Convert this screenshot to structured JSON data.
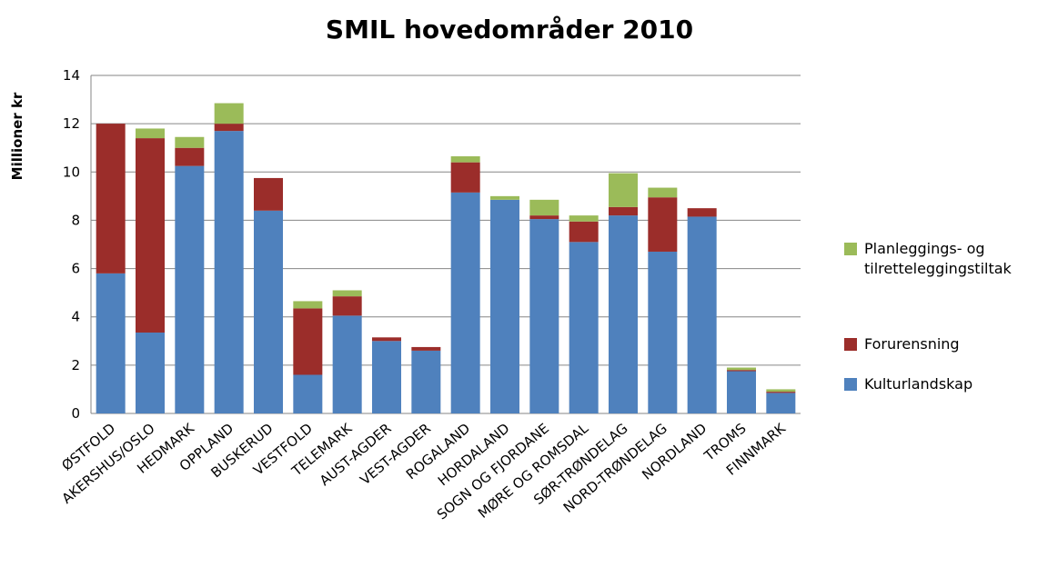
{
  "chart_data": {
    "type": "stacked_bar",
    "title": "SMIL hovedområder 2010",
    "y_label": "Millioner kr",
    "categories": [
      "ØSTFOLD",
      "AKERSHUS/OSLO",
      "HEDMARK",
      "OPPLAND",
      "BUSKERUD",
      "VESTFOLD",
      "TELEMARK",
      "AUST-AGDER",
      "VEST-AGDER",
      "ROGALAND",
      "HORDALAND",
      "SOGN OG FJORDANE",
      "MØRE OG ROMSDAL",
      "SØR-TRØNDELAG",
      "NORD-TRØNDELAG",
      "NORDLAND",
      "TROMS",
      "FINNMARK"
    ],
    "series": [
      {
        "name": "Kulturlandskap",
        "color": "#4f81bd",
        "values": [
          5.8,
          3.35,
          10.25,
          11.7,
          8.4,
          1.6,
          4.05,
          3.0,
          2.6,
          9.15,
          8.85,
          8.05,
          7.1,
          8.2,
          6.7,
          8.15,
          1.75,
          0.85
        ]
      },
      {
        "name": "Forurensning",
        "color": "#9b2d2a",
        "values": [
          6.2,
          8.05,
          0.75,
          0.3,
          1.35,
          2.75,
          0.8,
          0.15,
          0.15,
          1.25,
          0,
          0.15,
          0.85,
          0.35,
          2.25,
          0.35,
          0.05,
          0.05
        ]
      },
      {
        "name": "Planleggings- og tilretteleggingstiltak",
        "color": "#9bbb59",
        "values": [
          0,
          0.4,
          0.45,
          0.85,
          0,
          0.3,
          0.25,
          0,
          0,
          0.25,
          0.15,
          0.65,
          0.25,
          1.4,
          0.4,
          0,
          0.1,
          0.1
        ]
      }
    ],
    "ylim": [
      0,
      14
    ],
    "yticks": [
      0,
      2,
      4,
      6,
      8,
      10,
      12,
      14
    ],
    "grid": true,
    "legend": "right"
  }
}
